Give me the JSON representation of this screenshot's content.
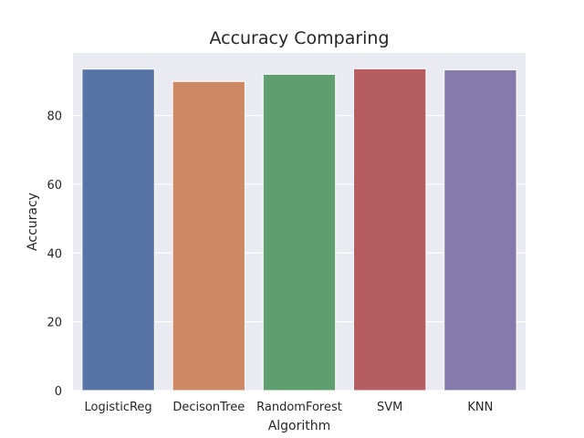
{
  "chart_data": {
    "type": "bar",
    "title": "Accuracy Comparing",
    "xlabel": "Algorithm",
    "ylabel": "Accuracy",
    "categories": [
      "LogisticReg",
      "DecisonTree",
      "RandomForest",
      "SVM",
      "KNN"
    ],
    "values": [
      93.5,
      89.9,
      92.0,
      93.6,
      93.3
    ],
    "colors": [
      "#5874a6",
      "#cc8963",
      "#5f9e6e",
      "#b55d60",
      "#857aab"
    ],
    "ylim": [
      0,
      98.2
    ],
    "yticks": [
      0,
      20,
      40,
      60,
      80
    ],
    "grid": true,
    "background": "#eaeaf2"
  }
}
